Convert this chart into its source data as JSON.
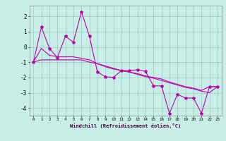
{
  "xlabel": "Windchill (Refroidissement éolien,°C)",
  "background_color": "#c8eee8",
  "grid_color": "#a0ccc8",
  "line_color": "#bb00aa",
  "x": [
    0,
    1,
    2,
    3,
    4,
    5,
    6,
    7,
    8,
    9,
    10,
    11,
    12,
    13,
    14,
    15,
    16,
    17,
    18,
    19,
    20,
    21,
    22,
    23
  ],
  "y_main": [
    -1.0,
    1.3,
    -0.1,
    -0.7,
    0.7,
    0.3,
    2.3,
    0.7,
    -1.65,
    -1.95,
    -2.0,
    -1.55,
    -1.55,
    -1.5,
    -1.6,
    -2.55,
    -2.55,
    -4.35,
    -3.1,
    -3.35,
    -3.35,
    -4.35,
    -2.6,
    -2.6
  ],
  "y_smooth1": [
    -1.0,
    -0.1,
    -0.55,
    -0.65,
    -0.65,
    -0.65,
    -0.75,
    -0.85,
    -1.1,
    -1.3,
    -1.45,
    -1.55,
    -1.65,
    -1.75,
    -1.9,
    -2.0,
    -2.1,
    -2.3,
    -2.45,
    -2.6,
    -2.7,
    -2.85,
    -2.6,
    -2.6
  ],
  "y_linear": [
    -1.0,
    -0.85,
    -0.85,
    -0.85,
    -0.85,
    -0.85,
    -0.85,
    -1.0,
    -1.1,
    -1.25,
    -1.4,
    -1.55,
    -1.65,
    -1.8,
    -1.95,
    -2.05,
    -2.2,
    -2.35,
    -2.5,
    -2.65,
    -2.75,
    -2.9,
    -3.0,
    -2.6
  ],
  "ylim": [
    -4.5,
    2.7
  ],
  "xlim": [
    -0.5,
    23.5
  ],
  "yticks": [
    -4,
    -3,
    -2,
    -1,
    0,
    1,
    2
  ],
  "xticks": [
    0,
    1,
    2,
    3,
    4,
    5,
    6,
    7,
    8,
    9,
    10,
    11,
    12,
    13,
    14,
    15,
    16,
    17,
    18,
    19,
    20,
    21,
    22,
    23
  ]
}
